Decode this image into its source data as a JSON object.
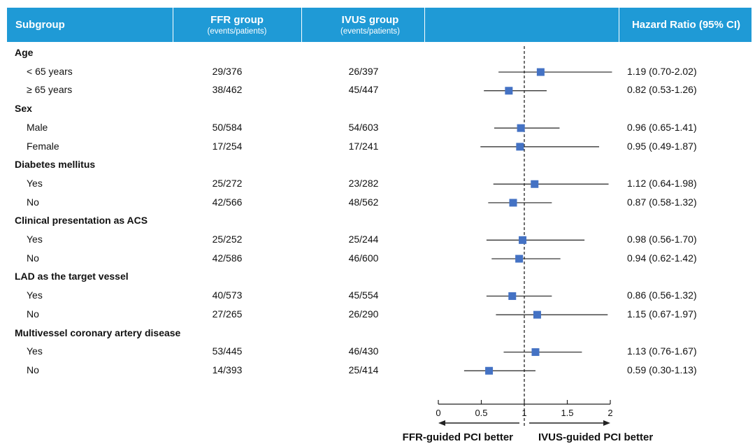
{
  "header": {
    "subgroup": "Subgroup",
    "ffr_title": "FFR group",
    "ffr_sub": "(events/patients)",
    "ivus_title": "IVUS group",
    "ivus_sub": "(events/patients)",
    "hr_title": "Hazard Ratio (95% CI)"
  },
  "rows": [
    {
      "type": "group",
      "label": "Age"
    },
    {
      "type": "item",
      "label": "< 65 years",
      "ffr": "29/376",
      "ivus": "26/397",
      "hr_text": "1.19 (0.70-2.02)",
      "hr": 1.19,
      "lo": 0.7,
      "hi": 2.02
    },
    {
      "type": "item",
      "label": "≥ 65 years",
      "ffr": "38/462",
      "ivus": "45/447",
      "hr_text": "0.82 (0.53-1.26)",
      "hr": 0.82,
      "lo": 0.53,
      "hi": 1.26
    },
    {
      "type": "group",
      "label": "Sex"
    },
    {
      "type": "item",
      "label": "Male",
      "ffr": "50/584",
      "ivus": "54/603",
      "hr_text": "0.96 (0.65-1.41)",
      "hr": 0.96,
      "lo": 0.65,
      "hi": 1.41
    },
    {
      "type": "item",
      "label": "Female",
      "ffr": "17/254",
      "ivus": "17/241",
      "hr_text": "0.95 (0.49-1.87)",
      "hr": 0.95,
      "lo": 0.49,
      "hi": 1.87
    },
    {
      "type": "group",
      "label": "Diabetes mellitus"
    },
    {
      "type": "item",
      "label": "Yes",
      "ffr": "25/272",
      "ivus": "23/282",
      "hr_text": "1.12 (0.64-1.98)",
      "hr": 1.12,
      "lo": 0.64,
      "hi": 1.98
    },
    {
      "type": "item",
      "label": "No",
      "ffr": "42/566",
      "ivus": "48/562",
      "hr_text": "0.87 (0.58-1.32)",
      "hr": 0.87,
      "lo": 0.58,
      "hi": 1.32
    },
    {
      "type": "group",
      "label": "Clinical presentation as ACS"
    },
    {
      "type": "item",
      "label": "Yes",
      "ffr": "25/252",
      "ivus": "25/244",
      "hr_text": "0.98 (0.56-1.70)",
      "hr": 0.98,
      "lo": 0.56,
      "hi": 1.7
    },
    {
      "type": "item",
      "label": "No",
      "ffr": "42/586",
      "ivus": "46/600",
      "hr_text": "0.94 (0.62-1.42)",
      "hr": 0.94,
      "lo": 0.62,
      "hi": 1.42
    },
    {
      "type": "group",
      "label": "LAD as the target vessel"
    },
    {
      "type": "item",
      "label": "Yes",
      "ffr": "40/573",
      "ivus": "45/554",
      "hr_text": "0.86 (0.56-1.32)",
      "hr": 0.86,
      "lo": 0.56,
      "hi": 1.32
    },
    {
      "type": "item",
      "label": "No",
      "ffr": "27/265",
      "ivus": "26/290",
      "hr_text": "1.15 (0.67-1.97)",
      "hr": 1.15,
      "lo": 0.67,
      "hi": 1.97
    },
    {
      "type": "group",
      "label": "Multivessel coronary artery disease"
    },
    {
      "type": "item",
      "label": "Yes",
      "ffr": "53/445",
      "ivus": "46/430",
      "hr_text": "1.13 (0.76-1.67)",
      "hr": 1.13,
      "lo": 0.76,
      "hi": 1.67
    },
    {
      "type": "item",
      "label": "No",
      "ffr": "14/393",
      "ivus": "25/414",
      "hr_text": "0.59 (0.30-1.13)",
      "hr": 0.59,
      "lo": 0.3,
      "hi": 1.13
    }
  ],
  "chart_data": {
    "type": "scatter",
    "title": "",
    "xlabel_left": "FFR-guided PCI better",
    "xlabel_right": "IVUS-guided PCI better",
    "xlim": [
      0,
      2
    ],
    "x_ticks": [
      0,
      0.5,
      1,
      1.5,
      2
    ],
    "x_tick_labels": [
      "0",
      "0.5",
      "1",
      "1.5",
      "2"
    ],
    "reference_line": 1,
    "marker_color": "#4472c4",
    "header_color": "#1f9ad6"
  }
}
